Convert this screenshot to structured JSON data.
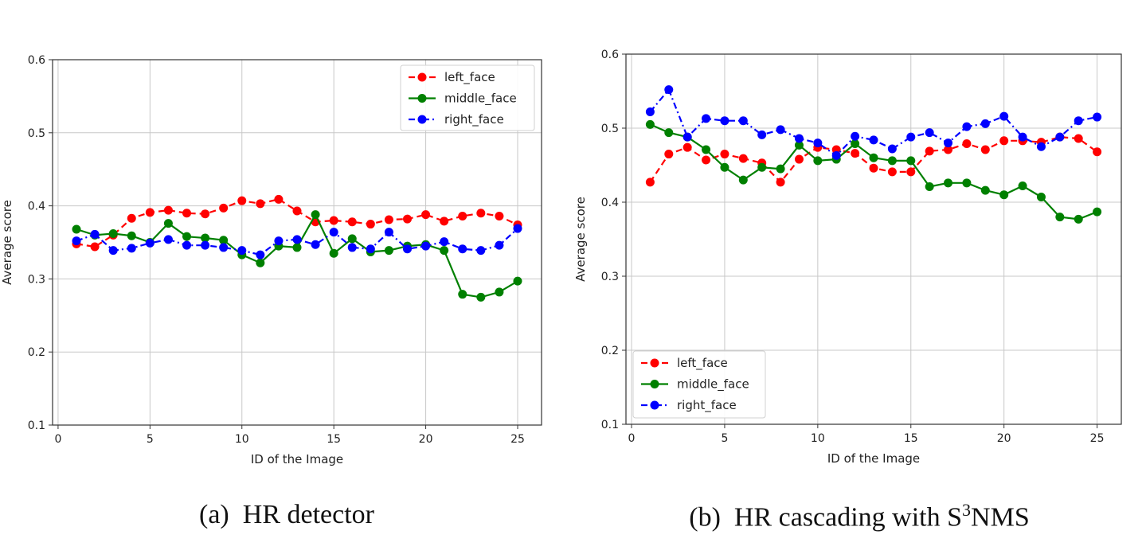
{
  "chart_data": [
    {
      "type": "line",
      "caption_label": "(a)",
      "caption_text": "HR detector",
      "xlabel": "ID of the Image",
      "ylabel": "Average score",
      "xlim": [
        -0.3,
        26.3
      ],
      "ylim": [
        0.1,
        0.6
      ],
      "xticks": [
        0,
        5,
        10,
        15,
        20,
        25
      ],
      "yticks": [
        0.1,
        0.2,
        0.3,
        0.4,
        0.5,
        0.6
      ],
      "xtick_labels": [
        "0",
        "5",
        "10",
        "15",
        "20",
        "25"
      ],
      "ytick_labels": [
        "0.1",
        "0.2",
        "0.3",
        "0.4",
        "0.5",
        "0.6"
      ],
      "grid": true,
      "legend_position": "top-right",
      "x": [
        1,
        2,
        3,
        4,
        5,
        6,
        7,
        8,
        9,
        10,
        11,
        12,
        13,
        14,
        15,
        16,
        17,
        18,
        19,
        20,
        21,
        22,
        23,
        24,
        25
      ],
      "series": [
        {
          "name": "left_face",
          "color": "#ff0000",
          "dash": "8,5",
          "values": [
            0.348,
            0.344,
            0.36,
            0.383,
            0.391,
            0.394,
            0.39,
            0.389,
            0.397,
            0.407,
            0.403,
            0.409,
            0.393,
            0.378,
            0.38,
            0.378,
            0.375,
            0.381,
            0.382,
            0.388,
            0.379,
            0.386,
            0.39,
            0.386,
            0.374
          ]
        },
        {
          "name": "middle_face",
          "color": "#008000",
          "dash": "",
          "values": [
            0.368,
            0.36,
            0.362,
            0.359,
            0.35,
            0.376,
            0.358,
            0.356,
            0.353,
            0.333,
            0.322,
            0.345,
            0.343,
            0.388,
            0.335,
            0.355,
            0.337,
            0.339,
            0.345,
            0.347,
            0.339,
            0.279,
            0.275,
            0.282,
            0.297
          ]
        },
        {
          "name": "right_face",
          "color": "#0000ff",
          "dash": "8,4,2,4",
          "values": [
            0.352,
            0.361,
            0.339,
            0.342,
            0.349,
            0.354,
            0.346,
            0.346,
            0.343,
            0.339,
            0.333,
            0.352,
            0.354,
            0.347,
            0.364,
            0.343,
            0.341,
            0.364,
            0.341,
            0.345,
            0.351,
            0.341,
            0.339,
            0.346,
            0.369
          ]
        }
      ]
    },
    {
      "type": "line",
      "caption_label": "(b)",
      "caption_text": "HR cascading with S",
      "caption_sup": "3",
      "caption_tail": "NMS",
      "xlabel": "ID of the Image",
      "ylabel": "Average score",
      "xlim": [
        -0.3,
        26.3
      ],
      "ylim": [
        0.1,
        0.6
      ],
      "xticks": [
        0,
        5,
        10,
        15,
        20,
        25
      ],
      "yticks": [
        0.1,
        0.2,
        0.3,
        0.4,
        0.5,
        0.6
      ],
      "xtick_labels": [
        "0",
        "5",
        "10",
        "15",
        "20",
        "25"
      ],
      "ytick_labels": [
        "0.1",
        "0.2",
        "0.3",
        "0.4",
        "0.5",
        "0.6"
      ],
      "grid": true,
      "legend_position": "bottom-left",
      "x": [
        1,
        2,
        3,
        4,
        5,
        6,
        7,
        8,
        9,
        10,
        11,
        12,
        13,
        14,
        15,
        16,
        17,
        18,
        19,
        20,
        21,
        22,
        23,
        24,
        25
      ],
      "series": [
        {
          "name": "left_face",
          "color": "#ff0000",
          "dash": "8,5",
          "values": [
            0.427,
            0.465,
            0.474,
            0.457,
            0.465,
            0.459,
            0.453,
            0.427,
            0.458,
            0.474,
            0.471,
            0.466,
            0.446,
            0.441,
            0.441,
            0.469,
            0.471,
            0.479,
            0.471,
            0.483,
            0.483,
            0.481,
            0.488,
            0.486,
            0.468
          ]
        },
        {
          "name": "middle_face",
          "color": "#008000",
          "dash": "",
          "values": [
            0.505,
            0.494,
            0.488,
            0.471,
            0.447,
            0.43,
            0.447,
            0.445,
            0.477,
            0.456,
            0.458,
            0.479,
            0.46,
            0.456,
            0.456,
            0.421,
            0.426,
            0.426,
            0.416,
            0.41,
            0.422,
            0.407,
            0.38,
            0.377,
            0.387
          ]
        },
        {
          "name": "right_face",
          "color": "#0000ff",
          "dash": "8,4,2,4",
          "values": [
            0.522,
            0.552,
            0.488,
            0.513,
            0.51,
            0.51,
            0.491,
            0.498,
            0.486,
            0.48,
            0.463,
            0.489,
            0.484,
            0.472,
            0.488,
            0.494,
            0.48,
            0.502,
            0.506,
            0.516,
            0.488,
            0.475,
            0.488,
            0.51,
            0.515
          ]
        }
      ]
    }
  ]
}
